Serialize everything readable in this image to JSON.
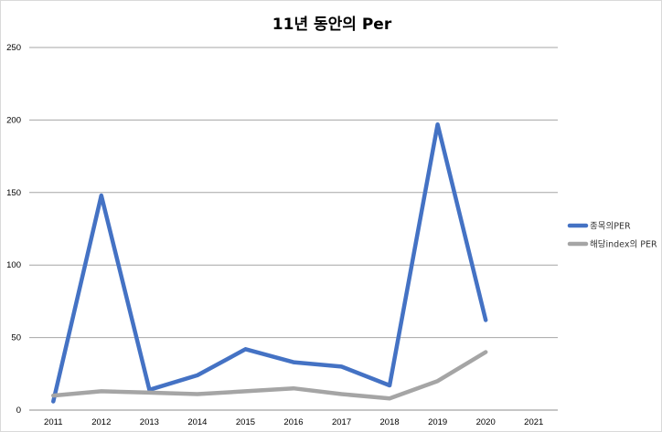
{
  "chart_data": {
    "type": "line",
    "title": "11년 동안의 Per",
    "categories": [
      "2011",
      "2012",
      "2013",
      "2014",
      "2015",
      "2016",
      "2017",
      "2018",
      "2019",
      "2020",
      "2021"
    ],
    "ylim": [
      0,
      250
    ],
    "yticks": [
      0,
      50,
      100,
      150,
      200,
      250
    ],
    "grid": true,
    "legend_position": "right",
    "series": [
      {
        "name": "종목의PER",
        "color": "#4472c4",
        "values": [
          6,
          148,
          14,
          24,
          42,
          33,
          30,
          17,
          197,
          62,
          null
        ]
      },
      {
        "name": "해당index의 PER",
        "color": "#a5a5a5",
        "values": [
          10,
          13,
          12,
          11,
          13,
          15,
          11,
          8,
          20,
          40,
          null
        ]
      }
    ]
  }
}
